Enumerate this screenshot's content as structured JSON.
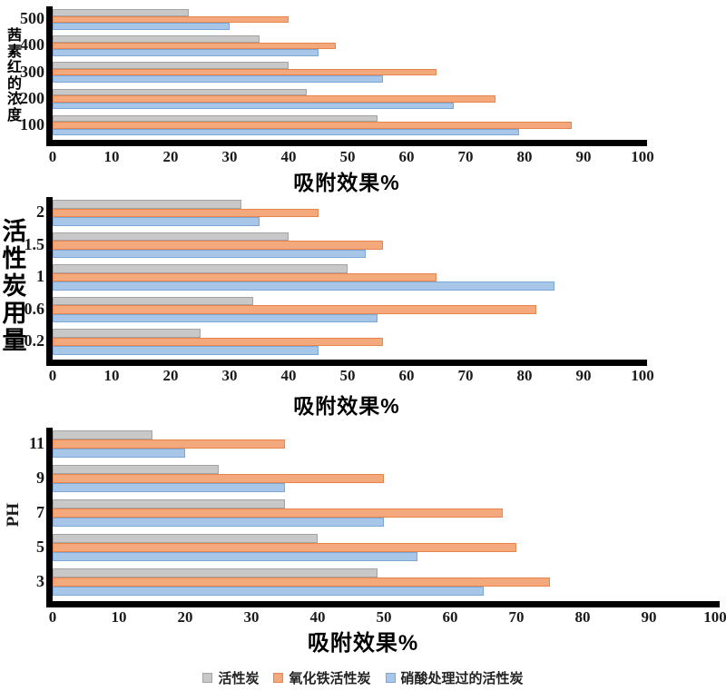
{
  "colors": {
    "gray": {
      "fill": "#C8C8C8",
      "border": "#A3A3A3"
    },
    "orange": {
      "fill": "#F4A97C",
      "border": "#E8854E"
    },
    "blue": {
      "fill": "#A8C6E8",
      "border": "#7BA7D7"
    }
  },
  "legend": {
    "items": [
      {
        "label": "活性炭",
        "color_key": "gray"
      },
      {
        "label": "氧化铁活性炭",
        "color_key": "orange"
      },
      {
        "label": "硝酸处理过的活性炭",
        "color_key": "blue"
      }
    ]
  },
  "chart_data": [
    {
      "type": "bar",
      "orientation": "horizontal",
      "y_axis_title": "茜素红的浓度",
      "x_axis_title": "吸附效果%",
      "categories": [
        "500",
        "400",
        "300",
        "200",
        "100"
      ],
      "x_ticks": [
        0,
        10,
        20,
        30,
        40,
        50,
        60,
        70,
        80,
        90,
        100
      ],
      "xlim": [
        0,
        100
      ],
      "grid": false,
      "series": [
        {
          "name": "活性炭",
          "color_key": "gray",
          "values": [
            23,
            35,
            40,
            43,
            55
          ]
        },
        {
          "name": "氧化铁活性炭",
          "color_key": "orange",
          "values": [
            40,
            48,
            65,
            75,
            88
          ]
        },
        {
          "name": "硝酸处理过的活性炭",
          "color_key": "blue",
          "values": [
            30,
            45,
            56,
            68,
            79
          ]
        }
      ]
    },
    {
      "type": "bar",
      "orientation": "horizontal",
      "y_axis_title": "活性炭用量",
      "x_axis_title": "吸附效果%",
      "categories": [
        "2",
        "1.5",
        "1",
        "0.6",
        "0.2"
      ],
      "x_ticks": [
        0,
        10,
        20,
        30,
        40,
        50,
        60,
        70,
        80,
        90,
        100
      ],
      "xlim": [
        0,
        100
      ],
      "grid": false,
      "series": [
        {
          "name": "活性炭",
          "color_key": "gray",
          "values": [
            32,
            40,
            50,
            34,
            25
          ]
        },
        {
          "name": "氧化铁活性炭",
          "color_key": "orange",
          "values": [
            45,
            56,
            65,
            82,
            56
          ]
        },
        {
          "name": "硝酸处理过的活性炭",
          "color_key": "blue",
          "values": [
            35,
            53,
            85,
            55,
            45
          ]
        }
      ]
    },
    {
      "type": "bar",
      "orientation": "horizontal",
      "y_axis_title": "PH",
      "x_axis_title": "吸附效果%",
      "categories": [
        "11",
        "9",
        "7",
        "5",
        "3"
      ],
      "x_ticks": [
        0,
        10,
        20,
        30,
        40,
        50,
        60,
        70,
        80,
        90,
        100
      ],
      "xlim": [
        0,
        100
      ],
      "grid": false,
      "series": [
        {
          "name": "活性炭",
          "color_key": "gray",
          "values": [
            15,
            25,
            35,
            40,
            49
          ]
        },
        {
          "name": "氧化铁活性炭",
          "color_key": "orange",
          "values": [
            35,
            50,
            68,
            70,
            75
          ]
        },
        {
          "name": "硝酸处理过的活性炭",
          "color_key": "blue",
          "values": [
            20,
            35,
            50,
            55,
            65
          ]
        }
      ]
    }
  ]
}
